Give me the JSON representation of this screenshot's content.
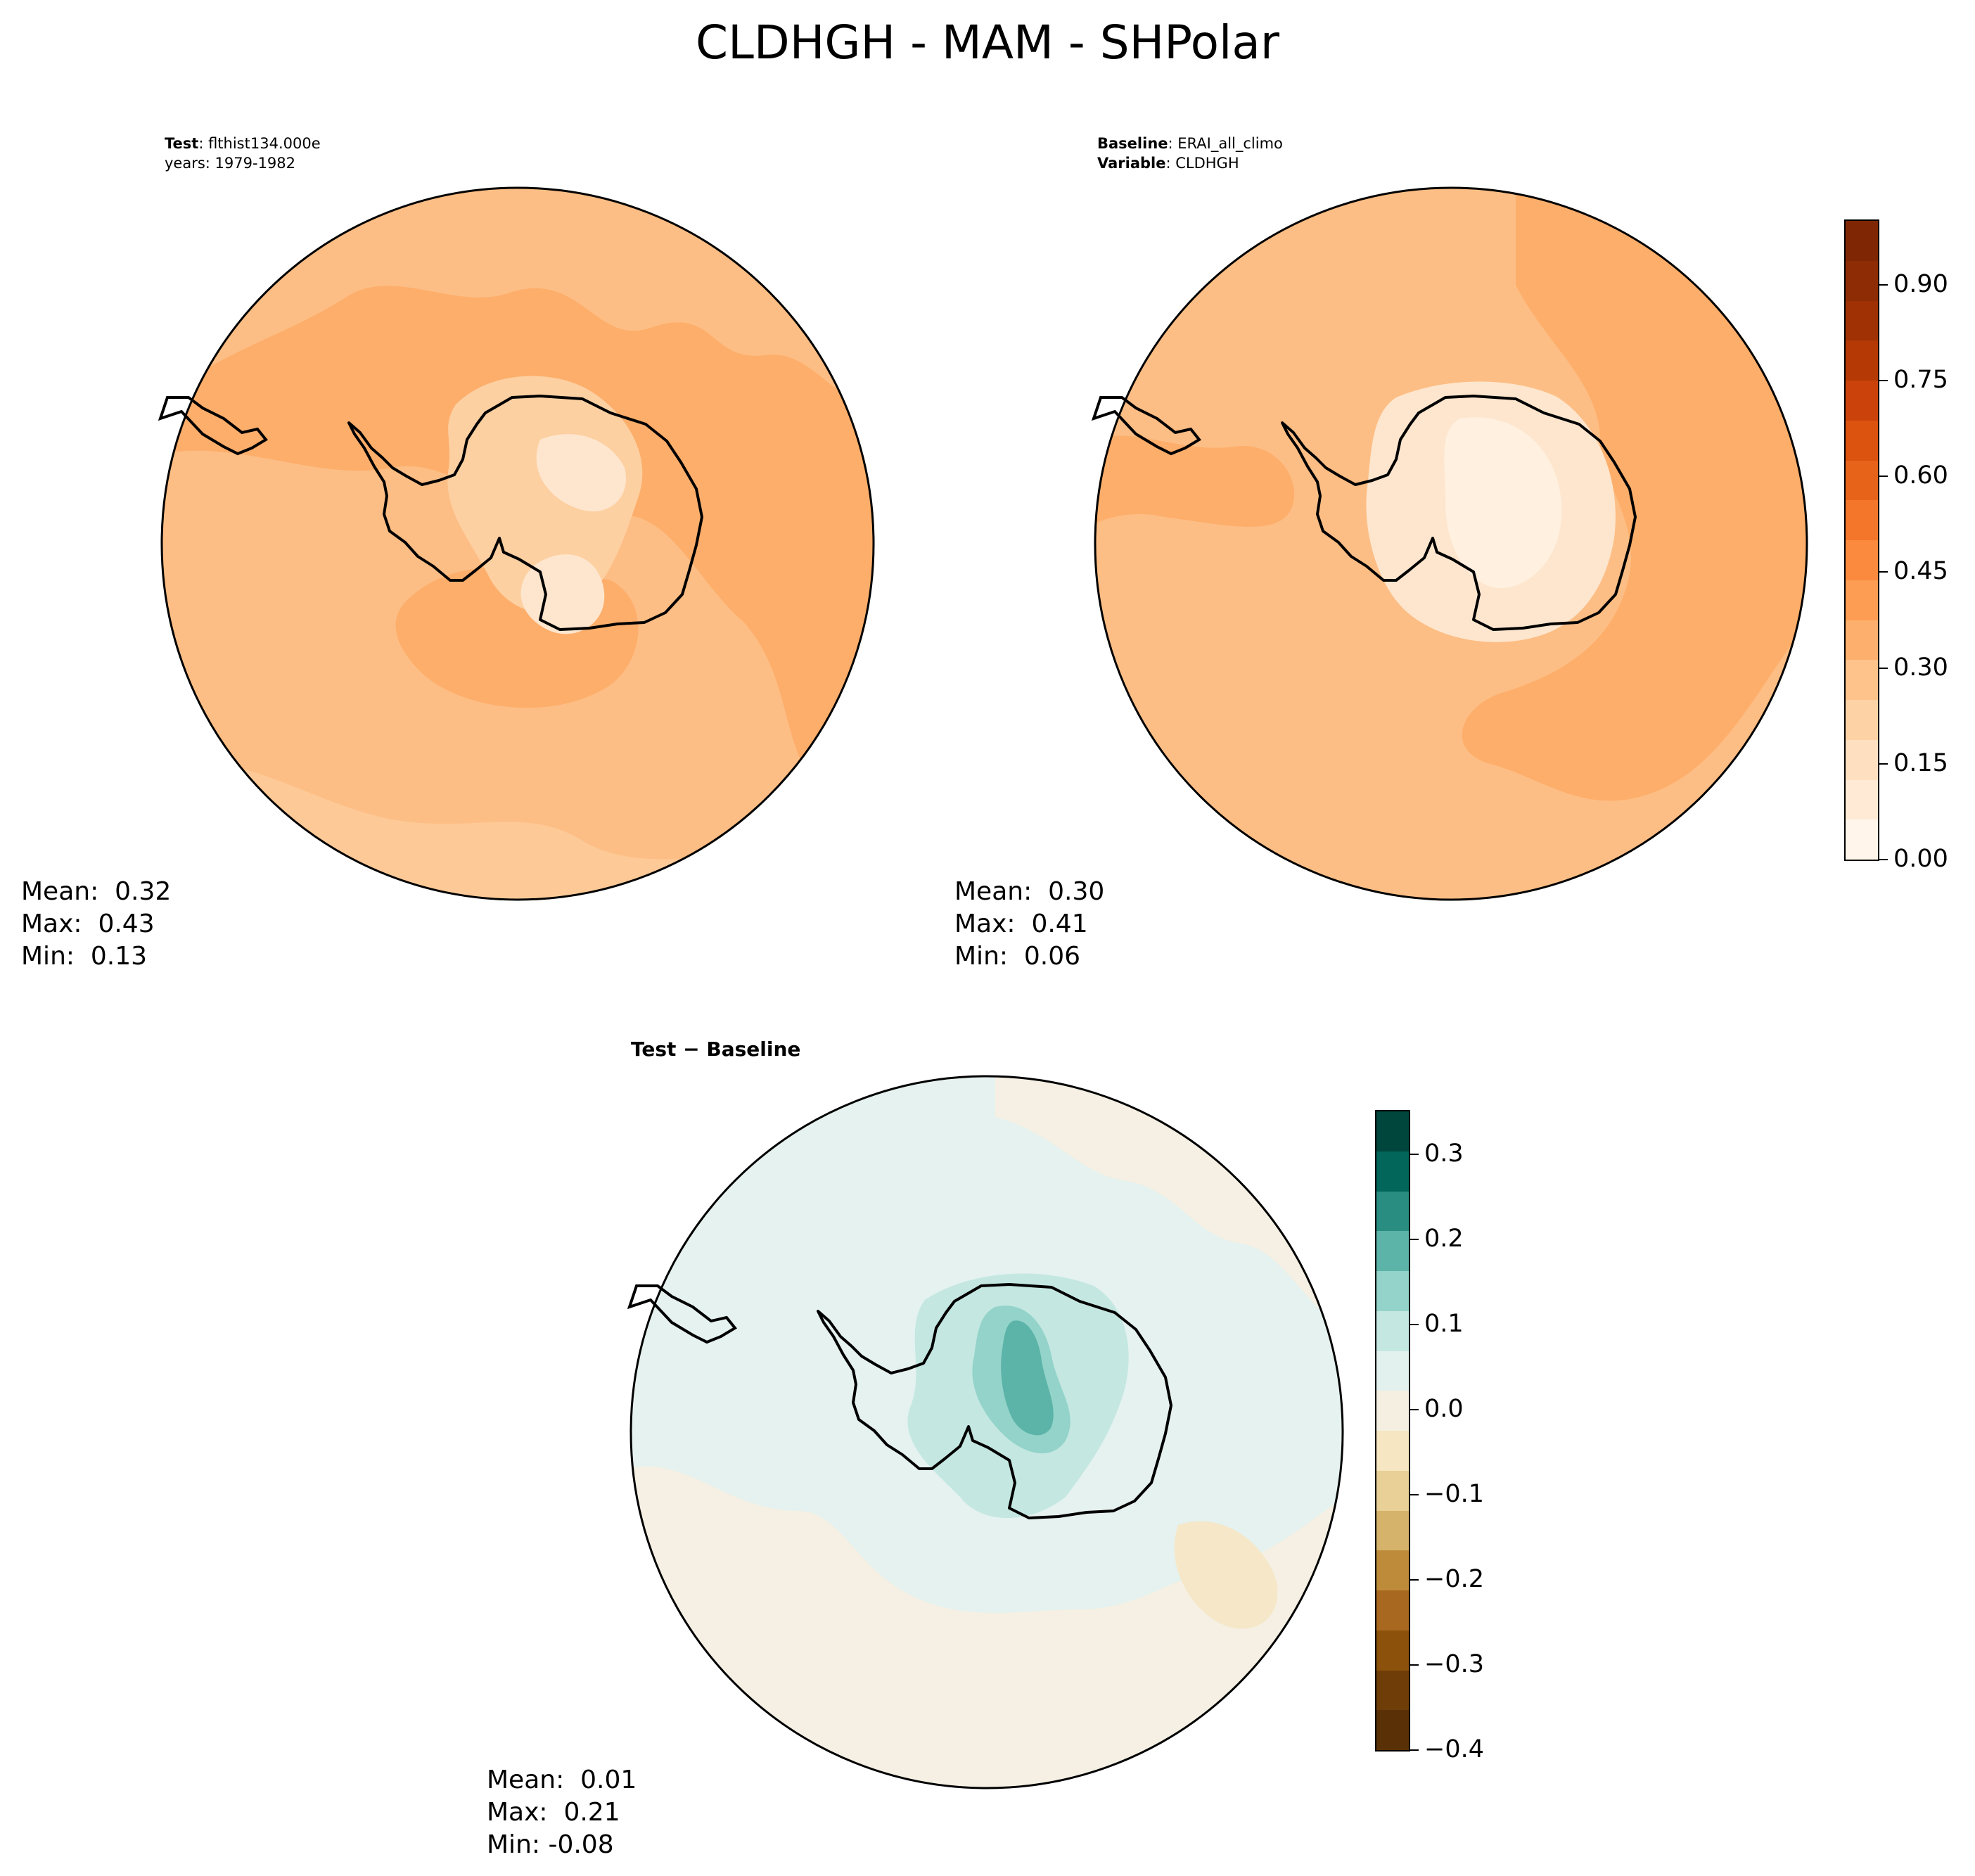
{
  "title": "CLDHGH - MAM - SHPolar",
  "test_panel": {
    "label_bold": "Test",
    "label_value": ": flthist134.000e",
    "years_line": "years: 1979-1982",
    "stats": {
      "mean": "Mean:  0.32",
      "max": "Max:  0.43",
      "min": "Min:  0.13"
    },
    "base_color": "#fdbe85",
    "ocean_zone_colors": [
      "#fdae6b",
      "#fdd0a2",
      "#fee6ce"
    ]
  },
  "baseline_panel": {
    "label_bold": "Baseline",
    "label_value": ": ERAI_all_climo",
    "variable_bold": "Variable",
    "variable_value": ": CLDHGH",
    "stats": {
      "mean": "Mean:  0.30",
      "max": "Max:  0.41",
      "min": "Min:  0.06"
    },
    "base_color": "#fdbe85"
  },
  "diff_panel": {
    "label": "Test − Baseline",
    "stats": {
      "mean": "Mean:  0.01",
      "max": "Max:  0.21",
      "min": "Min: -0.08"
    },
    "base_color": "#e5f2ef"
  },
  "colorbar_main": {
    "ticks": [
      "0.00",
      "0.15",
      "0.30",
      "0.45",
      "0.60",
      "0.75",
      "0.90"
    ],
    "tick_values": [
      0.0,
      0.15,
      0.3,
      0.45,
      0.6,
      0.75,
      0.9
    ],
    "range": [
      0.0,
      1.0
    ],
    "colors": [
      "#fff5eb",
      "#feead5",
      "#fee0c0",
      "#fdd3a6",
      "#fdc38a",
      "#fdb06d",
      "#fd9d53",
      "#fb8a3e",
      "#f3762a",
      "#e8631a",
      "#dc520f",
      "#cb430a",
      "#b43905",
      "#9f3104",
      "#8d2c05",
      "#7f2704"
    ]
  },
  "colorbar_diff": {
    "ticks": [
      "0.3",
      "0.2",
      "0.1",
      "0.0",
      "−0.1",
      "−0.2",
      "−0.3",
      "−0.4"
    ],
    "tick_values": [
      0.3,
      0.2,
      0.1,
      0.0,
      -0.1,
      -0.2,
      -0.3,
      -0.4
    ],
    "range": [
      -0.4,
      0.35
    ],
    "colors": [
      "#01463c",
      "#02665a",
      "#2a8d82",
      "#5cb3a8",
      "#93d3c9",
      "#c4e7e1",
      "#e3f1ee",
      "#f4efe1",
      "#f6e6c1",
      "#e8d096",
      "#d6b36a",
      "#be8b3a",
      "#a86820",
      "#8c510a",
      "#6f3d08",
      "#5a3107"
    ]
  }
}
